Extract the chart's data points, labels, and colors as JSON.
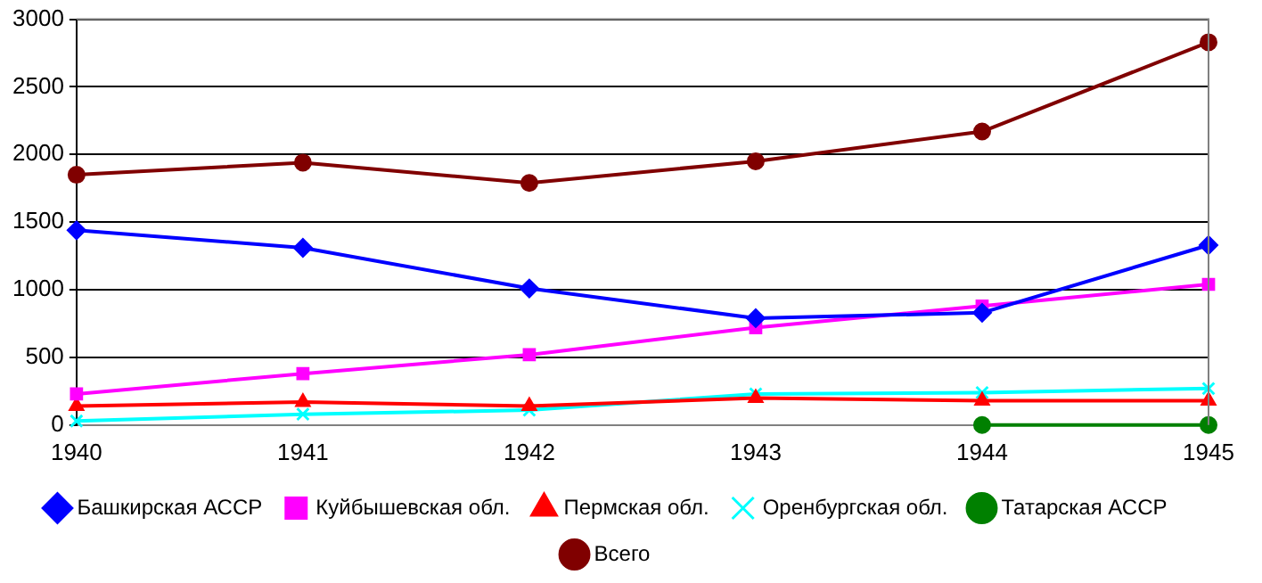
{
  "chart_data": {
    "type": "line",
    "categories": [
      "1940",
      "1941",
      "1942",
      "1943",
      "1944",
      "1945"
    ],
    "series": [
      {
        "name": "Башкирская АССР",
        "color": "#0000ff",
        "marker": "diamond",
        "values": [
          1440,
          1310,
          1010,
          790,
          830,
          1330
        ]
      },
      {
        "name": "Куйбышевская обл.",
        "color": "#ff00ff",
        "marker": "square",
        "values": [
          230,
          380,
          520,
          720,
          880,
          1040
        ]
      },
      {
        "name": "Пермская обл.",
        "color": "#ff0000",
        "marker": "triangle",
        "values": [
          140,
          170,
          140,
          200,
          180,
          180
        ]
      },
      {
        "name": "Оренбургская обл.",
        "color": "#00ffff",
        "marker": "cross",
        "values": [
          30,
          80,
          110,
          230,
          240,
          270
        ]
      },
      {
        "name": "Татарская АССР",
        "color": "#008000",
        "marker": "circle",
        "values": [
          null,
          null,
          null,
          null,
          0,
          0
        ]
      },
      {
        "name": "Всего",
        "color": "#800000",
        "marker": "circle",
        "values": [
          1850,
          1940,
          1790,
          1950,
          2170,
          2830
        ]
      }
    ],
    "ylim": [
      0,
      3000
    ],
    "yticks": [
      0,
      500,
      1000,
      1500,
      2000,
      2500,
      3000
    ],
    "grid": "y",
    "legend": "bottom"
  }
}
